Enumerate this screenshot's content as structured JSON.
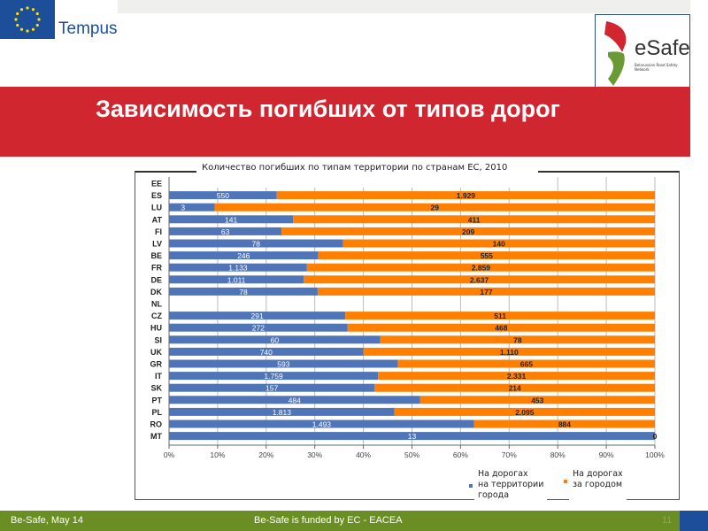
{
  "header": {
    "logo_left": "Tempus",
    "logo_right": "eSafe",
    "logo_right_sub": "Belarussian Road Safety Network"
  },
  "slide": {
    "title": "Зависимость погибших от типов дорог"
  },
  "chart_data": {
    "type": "bar",
    "orientation": "horizontal",
    "stacked": "percent",
    "title": "Количество погибших по типам территории по странам ЕС, 2010",
    "categories": [
      "EE",
      "ES",
      "LU",
      "AT",
      "FI",
      "LV",
      "BE",
      "FR",
      "DE",
      "DK",
      "NL",
      "CZ",
      "HU",
      "SI",
      "UK",
      "GR",
      "IT",
      "SK",
      "PT",
      "PL",
      "RO",
      "MT"
    ],
    "series": [
      {
        "name": "На дорогах на территории города",
        "color": "#4f74b8",
        "values": [
          null,
          550,
          3,
          141,
          63,
          78,
          246,
          1133,
          1011,
          78,
          null,
          291,
          272,
          60,
          740,
          593,
          1759,
          157,
          484,
          1813,
          1493,
          13
        ],
        "labels": [
          "",
          "550",
          "3",
          "141",
          "63",
          "78",
          "246",
          "1.133",
          "1.011",
          "78",
          "",
          "291",
          "272",
          "60",
          "740",
          "593",
          "1.759",
          "157",
          "484",
          "1.813",
          "1.493",
          "13"
        ]
      },
      {
        "name": "На дорогах за городом",
        "color": "#ff8000",
        "values": [
          null,
          1929,
          29,
          411,
          209,
          140,
          555,
          2859,
          2637,
          177,
          null,
          511,
          468,
          78,
          1110,
          665,
          2331,
          214,
          453,
          2095,
          884,
          0
        ],
        "labels": [
          "",
          "1.929",
          "29",
          "411",
          "209",
          "140",
          "555",
          "2.859",
          "2.637",
          "177",
          "",
          "511",
          "468",
          "78",
          "1.110",
          "665",
          "2.331",
          "214",
          "453",
          "2.095",
          "884",
          "0"
        ]
      }
    ],
    "xlim": [
      0,
      100
    ],
    "xticks": [
      "0%",
      "10%",
      "20%",
      "30%",
      "40%",
      "50%",
      "60%",
      "70%",
      "80%",
      "90%",
      "100%"
    ],
    "grid": true,
    "legend": {
      "placement": "bottom-right",
      "entries": [
        [
          "На дорогах",
          "на территории",
          "города"
        ],
        [
          "На дорогах",
          "за городом"
        ]
      ]
    }
  },
  "footer": {
    "left": "Be-Safe, May 14",
    "center": "Be-Safe is funded by EC - EACEA",
    "page": "11"
  }
}
